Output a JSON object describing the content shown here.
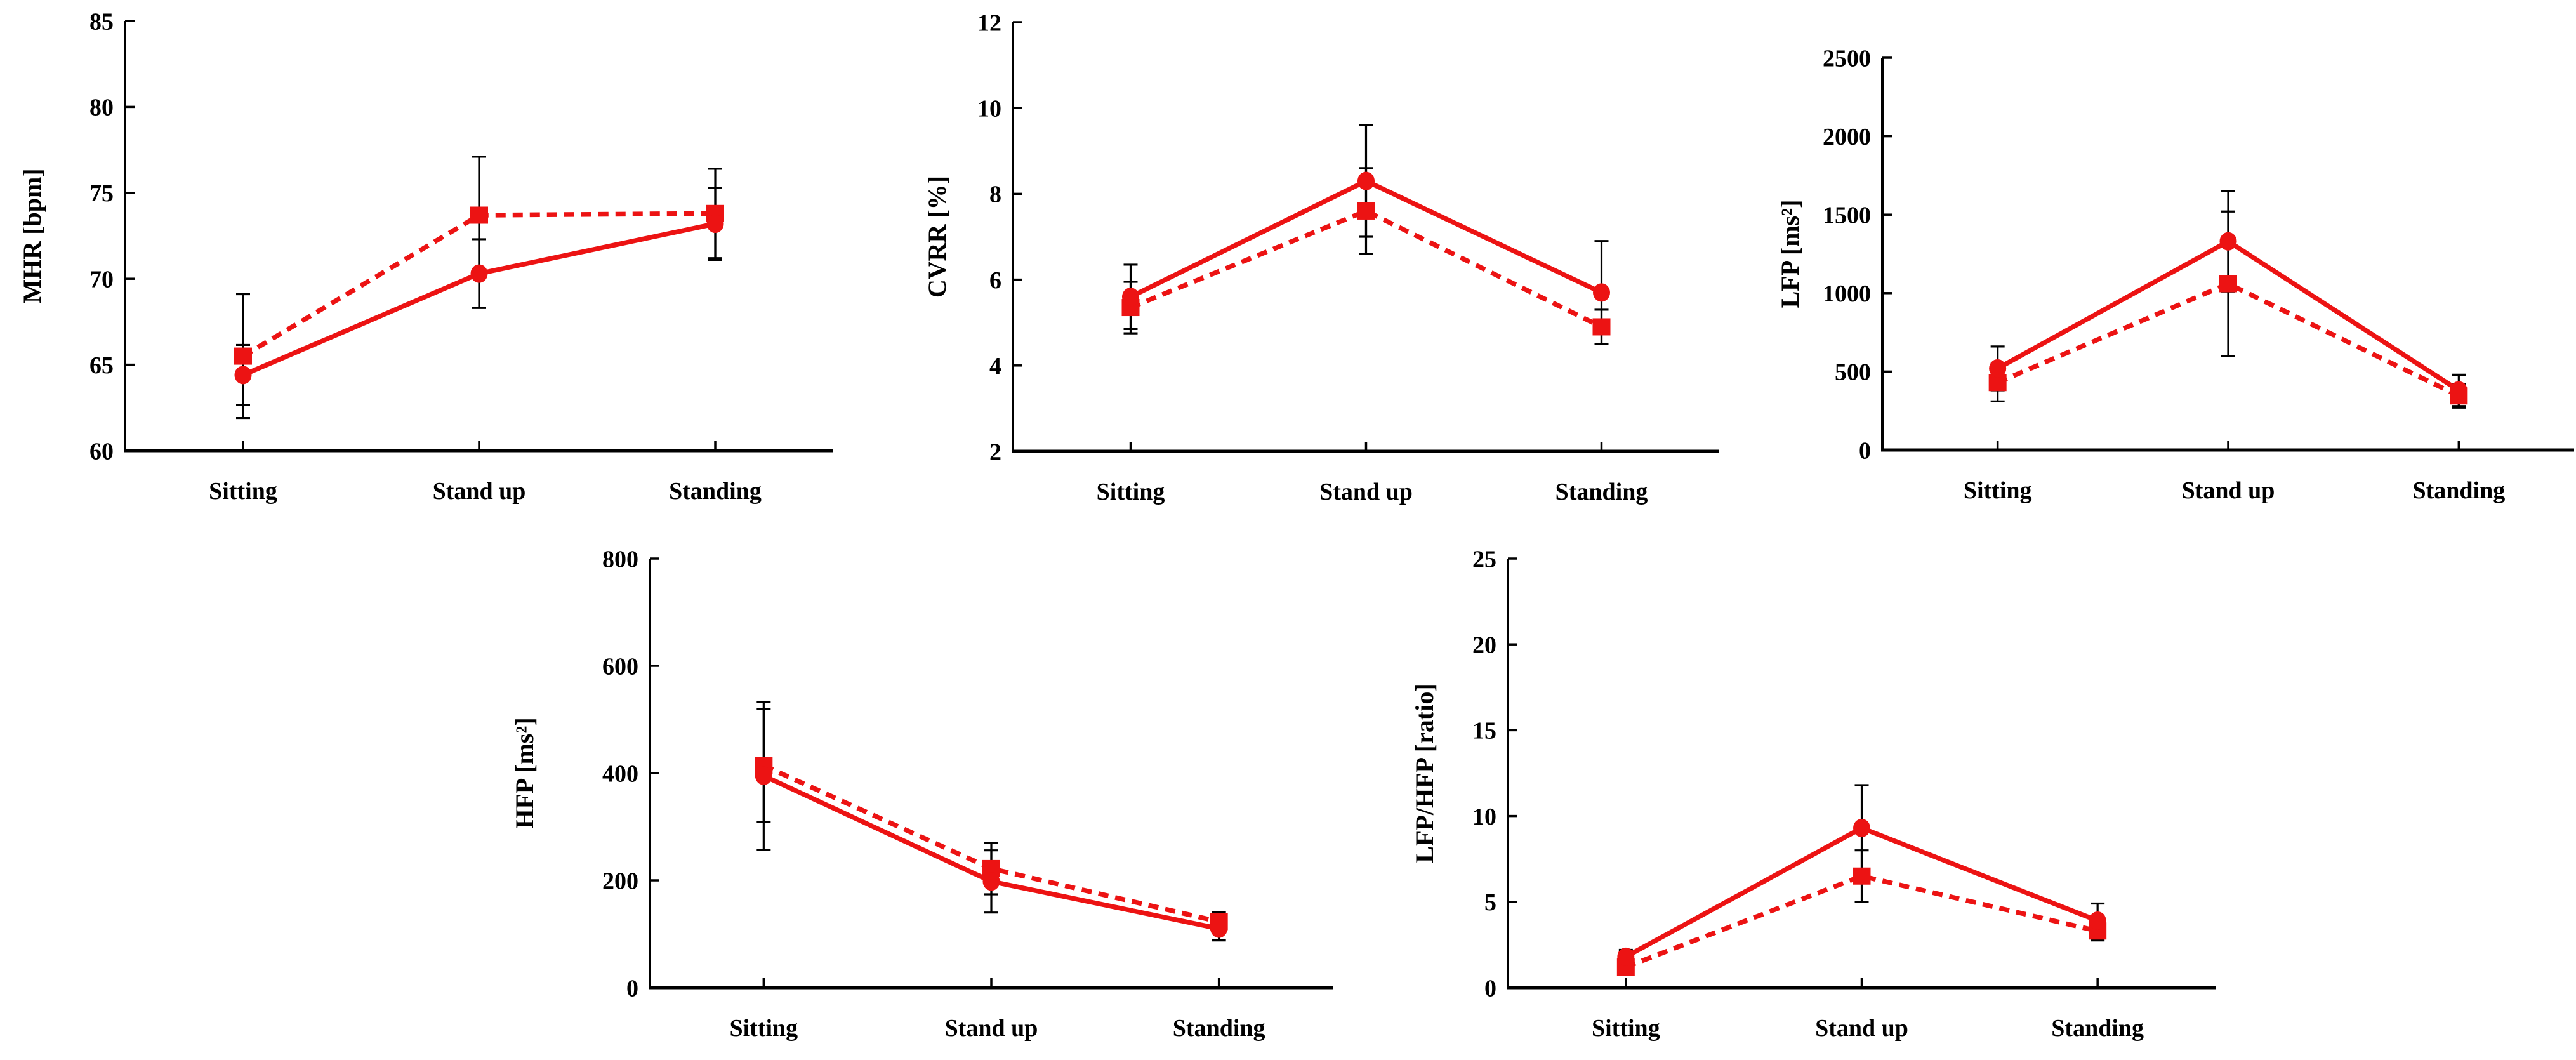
{
  "figure": {
    "description": "Five error-bar line charts of cardiovascular measures across postures",
    "colors": {
      "series_red": "#ec1313",
      "error_bar_black": "#000000",
      "axis_black": "#000000",
      "background": "#ffffff"
    },
    "series_legend": [
      {
        "name": "solid-line-circle-markers",
        "marker": "circle",
        "line_style": "solid"
      },
      {
        "name": "dashed-line-square-markers",
        "marker": "square",
        "line_style": "dashed"
      }
    ]
  },
  "chart_data": [
    {
      "id": "mhr",
      "type": "line",
      "title": "",
      "ylabel": "MHR [bpm]",
      "xlabel": "",
      "categories": [
        "Sitting",
        "Stand up",
        "Standing"
      ],
      "ylim": [
        60,
        85
      ],
      "yticks": [
        60,
        65,
        70,
        75,
        80,
        85
      ],
      "grid": false,
      "legend": "none",
      "series": [
        {
          "name": "solid-line-circle-markers",
          "marker": "circle",
          "line_style": "solid",
          "values": [
            64.4,
            70.3,
            73.2
          ],
          "errors": [
            1.75,
            2.0,
            2.1
          ]
        },
        {
          "name": "dashed-line-square-markers",
          "marker": "square",
          "line_style": "dashed",
          "values": [
            65.5,
            73.7,
            73.8
          ],
          "errors": [
            3.6,
            3.4,
            2.6
          ]
        }
      ]
    },
    {
      "id": "cvrr",
      "type": "line",
      "title": "",
      "ylabel": "CVRR [%]",
      "xlabel": "",
      "categories": [
        "Sitting",
        "Stand up",
        "Standing"
      ],
      "ylim": [
        2,
        12
      ],
      "yticks": [
        2,
        4,
        6,
        8,
        10,
        12
      ],
      "grid": false,
      "legend": "none",
      "series": [
        {
          "name": "solid-line-circle-markers",
          "marker": "circle",
          "line_style": "solid",
          "values": [
            5.6,
            8.3,
            5.7
          ],
          "errors": [
            0.75,
            1.3,
            1.2
          ]
        },
        {
          "name": "dashed-line-square-markers",
          "marker": "square",
          "line_style": "dashed",
          "values": [
            5.35,
            7.6,
            4.9
          ],
          "errors": [
            0.6,
            1.0,
            0.4
          ]
        }
      ]
    },
    {
      "id": "lfp",
      "type": "line",
      "title": "",
      "ylabel": "LFP [ms²]",
      "xlabel": "",
      "categories": [
        "Sitting",
        "Stand up",
        "Standing"
      ],
      "ylim": [
        0,
        2500
      ],
      "yticks": [
        0,
        500,
        1000,
        1500,
        2000,
        2500
      ],
      "grid": false,
      "legend": "none",
      "series": [
        {
          "name": "solid-line-circle-markers",
          "marker": "circle",
          "line_style": "solid",
          "values": [
            520,
            1330,
            380
          ],
          "errors": [
            140,
            320,
            100
          ]
        },
        {
          "name": "dashed-line-square-markers",
          "marker": "square",
          "line_style": "dashed",
          "values": [
            430,
            1060,
            345
          ],
          "errors": [
            120,
            460,
            75
          ]
        }
      ]
    },
    {
      "id": "hfp",
      "type": "line",
      "title": "",
      "ylabel": "HFP [ms²]",
      "xlabel": "",
      "categories": [
        "Sitting",
        "Stand up",
        "Standing"
      ],
      "ylim": [
        0,
        800
      ],
      "yticks": [
        0,
        200,
        400,
        600,
        800
      ],
      "grid": false,
      "legend": "none",
      "series": [
        {
          "name": "solid-line-circle-markers",
          "marker": "circle",
          "line_style": "solid",
          "values": [
            395,
            198,
            110
          ],
          "errors": [
            138,
            58,
            22
          ]
        },
        {
          "name": "dashed-line-square-markers",
          "marker": "square",
          "line_style": "dashed",
          "values": [
            414,
            222,
            123
          ],
          "errors": [
            105,
            48,
            18
          ]
        }
      ]
    },
    {
      "id": "lfp-hfp-ratio",
      "type": "line",
      "title": "",
      "ylabel": "LFP/HFP [ratio]",
      "xlabel": "",
      "categories": [
        "Sitting",
        "Stand up",
        "Standing"
      ],
      "ylim": [
        0,
        25
      ],
      "yticks": [
        0,
        5,
        10,
        15,
        20,
        25
      ],
      "grid": false,
      "legend": "none",
      "series": [
        {
          "name": "solid-line-circle-markers",
          "marker": "circle",
          "line_style": "solid",
          "values": [
            1.8,
            9.3,
            3.9
          ],
          "errors": [
            0.4,
            2.5,
            1.0
          ]
        },
        {
          "name": "dashed-line-square-markers",
          "marker": "square",
          "line_style": "dashed",
          "values": [
            1.2,
            6.5,
            3.3
          ],
          "errors": [
            0.3,
            1.5,
            0.55
          ]
        }
      ]
    }
  ]
}
